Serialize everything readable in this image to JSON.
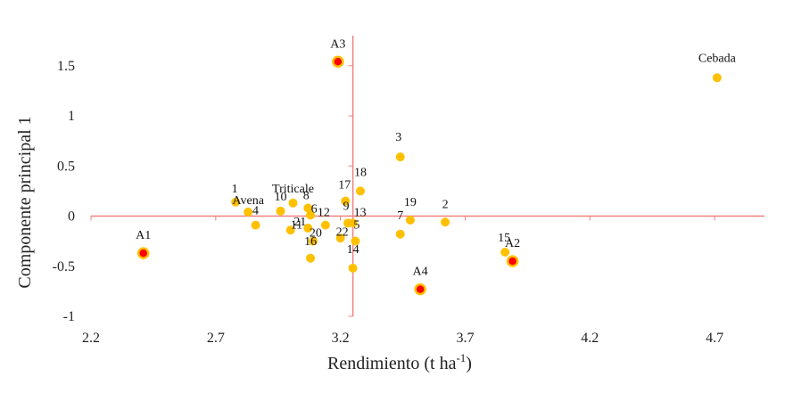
{
  "chart_data": {
    "type": "scatter",
    "title": "",
    "xlabel": "Rendimiento (t ha",
    "xlabel_sup": "-1",
    "xlabel_tail": ")",
    "ylabel": "Componente principal 1",
    "xlim": [
      2.2,
      4.9
    ],
    "ylim": [
      -1,
      1.8
    ],
    "x_ticks": [
      "2.2",
      "2.7",
      "3.2",
      "3.7",
      "4.2",
      "4.7"
    ],
    "y_ticks": [
      "1.5",
      "1",
      "0.5",
      "0",
      "-0.5",
      "-1"
    ],
    "x_tick_values": [
      2.2,
      2.7,
      3.2,
      3.7,
      4.2,
      4.7
    ],
    "y_tick_values": [
      1.5,
      1,
      0.5,
      0,
      -0.5,
      -1
    ],
    "reference_lines": {
      "x": 3.25,
      "y": 0
    },
    "grid": false,
    "colors": {
      "point_fill": "#FFC000",
      "env_fill": "#FF0000",
      "env_ring": "#FFC000",
      "axis_line": "#F08080"
    },
    "series": [
      {
        "points": [
          {
            "label": "1",
            "x": 2.78,
            "y": 0.14
          },
          {
            "label": "Avena",
            "x": 2.83,
            "y": 0.04
          },
          {
            "label": "4",
            "x": 2.86,
            "y": -0.09
          },
          {
            "label": "10",
            "x": 2.96,
            "y": 0.05
          },
          {
            "label": "Triticale",
            "x": 3.01,
            "y": 0.13
          },
          {
            "label": "11",
            "x": 3.0,
            "y": -0.14
          },
          {
            "label": "8",
            "x": 3.07,
            "y": 0.08
          },
          {
            "label": "6",
            "x": 3.08,
            "y": 0.01
          },
          {
            "label": "21",
            "x": 3.07,
            "y": -0.12
          },
          {
            "label": "20",
            "x": 3.09,
            "y": -0.25
          },
          {
            "label": "16",
            "x": 3.08,
            "y": -0.42
          },
          {
            "label": "12",
            "x": 3.14,
            "y": -0.09
          },
          {
            "label": "22",
            "x": 3.2,
            "y": -0.22
          },
          {
            "label": "17",
            "x": 3.22,
            "y": 0.15
          },
          {
            "label": "9",
            "x": 3.23,
            "y": -0.07
          },
          {
            "label": "13",
            "x": 3.25,
            "y": -0.07
          },
          {
            "label": "5",
            "x": 3.26,
            "y": -0.25
          },
          {
            "label": "14",
            "x": 3.25,
            "y": -0.52
          },
          {
            "label": "18",
            "x": 3.28,
            "y": 0.25
          },
          {
            "label": "3",
            "x": 3.44,
            "y": 0.59
          },
          {
            "label": "7",
            "x": 3.44,
            "y": -0.18
          },
          {
            "label": "19",
            "x": 3.48,
            "y": -0.04
          },
          {
            "label": "2",
            "x": 3.62,
            "y": -0.06
          },
          {
            "label": "15",
            "x": 3.86,
            "y": -0.36
          },
          {
            "label": "Cebada",
            "x": 4.71,
            "y": 1.38
          }
        ]
      },
      {
        "points": [
          {
            "label": "A1",
            "x": 2.41,
            "y": -0.37
          },
          {
            "label": "A2",
            "x": 3.89,
            "y": -0.45
          },
          {
            "label": "A3",
            "x": 3.19,
            "y": 1.54
          },
          {
            "label": "A4",
            "x": 3.52,
            "y": -0.73
          }
        ]
      }
    ]
  }
}
